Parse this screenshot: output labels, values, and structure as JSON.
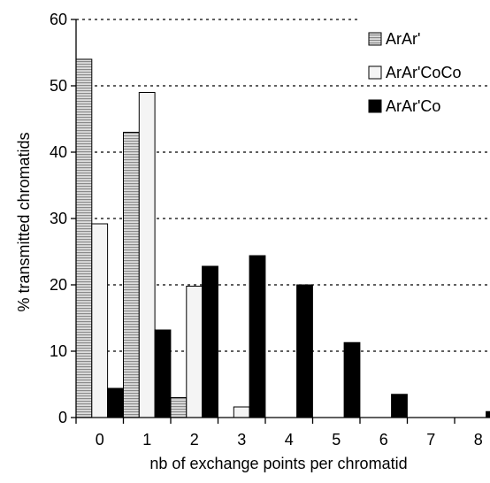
{
  "chart_data": {
    "type": "bar",
    "title": "",
    "xlabel": "nb of exchange points per chromatid",
    "ylabel": "% transmitted chromatids",
    "ylim": [
      0,
      60
    ],
    "yticks": [
      "0",
      "10",
      "20",
      "30",
      "40",
      "50",
      "60"
    ],
    "categories": [
      "0",
      "1",
      "2",
      "3",
      "4",
      "5",
      "6",
      "7",
      "8"
    ],
    "grid": "horizontal dotted",
    "legend_position": "top-right",
    "series": [
      {
        "name": "ArAr'",
        "color": "#c8c8c8",
        "pattern": "horizontal-stripes",
        "values": [
          54,
          43,
          3,
          0,
          0,
          0,
          0,
          0,
          0
        ]
      },
      {
        "name": "ArAr'CoCo",
        "color": "#f4f4f4",
        "pattern": "none",
        "values": [
          29.2,
          49,
          19.8,
          1.6,
          0,
          0,
          0,
          0,
          0
        ]
      },
      {
        "name": "ArAr'Co",
        "color": "#000000",
        "pattern": "none",
        "values": [
          4.4,
          13.2,
          22.8,
          24.4,
          20,
          11.3,
          3.5,
          0,
          0.9
        ]
      }
    ]
  }
}
